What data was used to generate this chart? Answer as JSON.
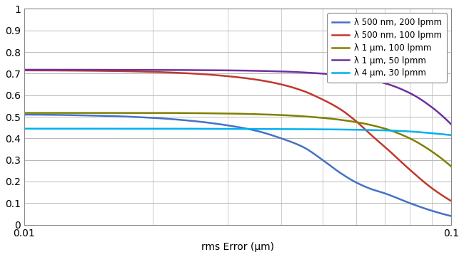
{
  "title": "",
  "xlabel": "rms Error (μm)",
  "ylabel": "",
  "xlim": [
    0.01,
    0.1
  ],
  "ylim": [
    0,
    1
  ],
  "yticks": [
    0,
    0.1,
    0.2,
    0.3,
    0.4,
    0.5,
    0.6,
    0.7,
    0.8,
    0.9,
    1
  ],
  "background_color": "#ffffff",
  "grid_color": "#b8b8b8",
  "curves": [
    {
      "label": "λ 500 nm, 200 lpmm",
      "color": "#4472c4",
      "lambda_um": 0.5,
      "lpmm": 200,
      "mtf0": 0.511
    },
    {
      "label": "λ 500 nm, 100 lpmm",
      "color": "#c0392b",
      "lambda_um": 0.5,
      "lpmm": 100,
      "mtf0": 0.716
    },
    {
      "label": "λ 1 μm, 100 lpmm",
      "color": "#808000",
      "lambda_um": 1.0,
      "lpmm": 100,
      "mtf0": 0.518
    },
    {
      "label": "λ 1 μm, 50 lpmm",
      "color": "#7030a0",
      "lambda_um": 1.0,
      "lpmm": 50,
      "mtf0": 0.718
    },
    {
      "label": "λ 4 μm, 30 lpmm",
      "color": "#00b0f0",
      "lambda_um": 4.0,
      "lpmm": 30,
      "mtf0": 0.445
    }
  ]
}
